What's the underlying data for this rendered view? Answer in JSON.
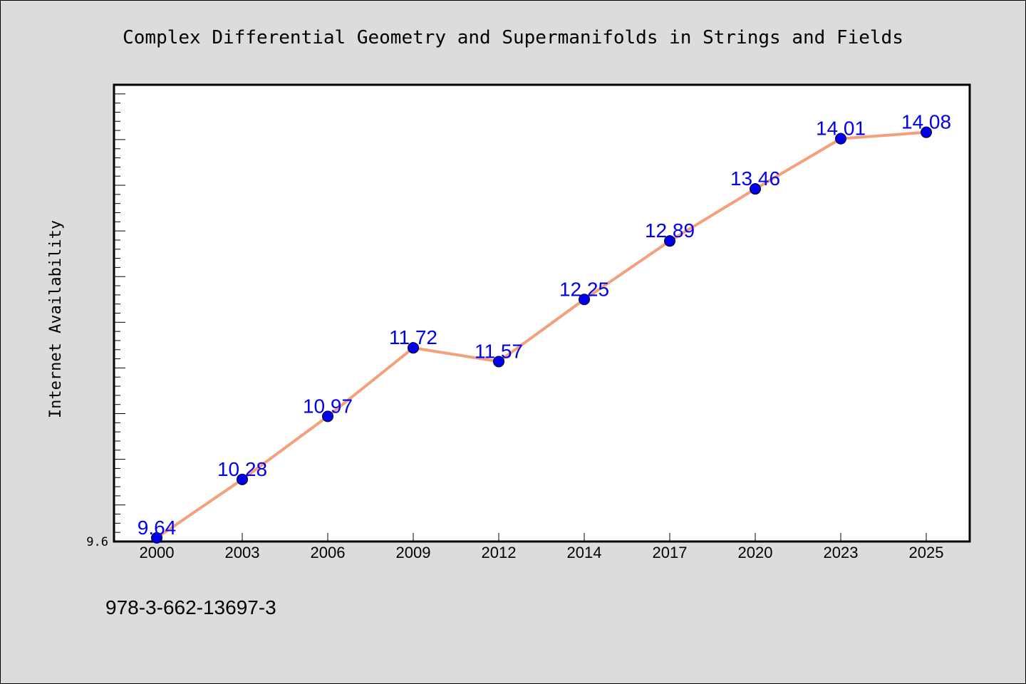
{
  "chart_data": {
    "type": "line",
    "title": "Complex Differential Geometry and Supermanifolds in Strings and Fields",
    "ylabel": "Internet Availability",
    "xlabel": "",
    "categories": [
      "2000",
      "2003",
      "2006",
      "2009",
      "2012",
      "2014",
      "2017",
      "2020",
      "2023",
      "2025"
    ],
    "values": [
      9.64,
      10.28,
      10.97,
      11.72,
      11.57,
      12.25,
      12.89,
      13.46,
      14.01,
      14.08
    ],
    "data_labels": [
      "9.64",
      "10.28",
      "10.97",
      "11.72",
      "11.57",
      "12.25",
      "12.89",
      "13.46",
      "14.01",
      "14.08"
    ],
    "ylim": [
      9.6,
      14.6
    ],
    "y_tick_labels": [
      "9.6"
    ],
    "grid": false,
    "colors": {
      "line": "#f4a07c",
      "marker": "#0000ee",
      "label": "#0000ee",
      "background": "#dcdcdc",
      "plot_background": "#ffffff"
    }
  },
  "footer": {
    "isbn": "978-3-662-13697-3"
  }
}
